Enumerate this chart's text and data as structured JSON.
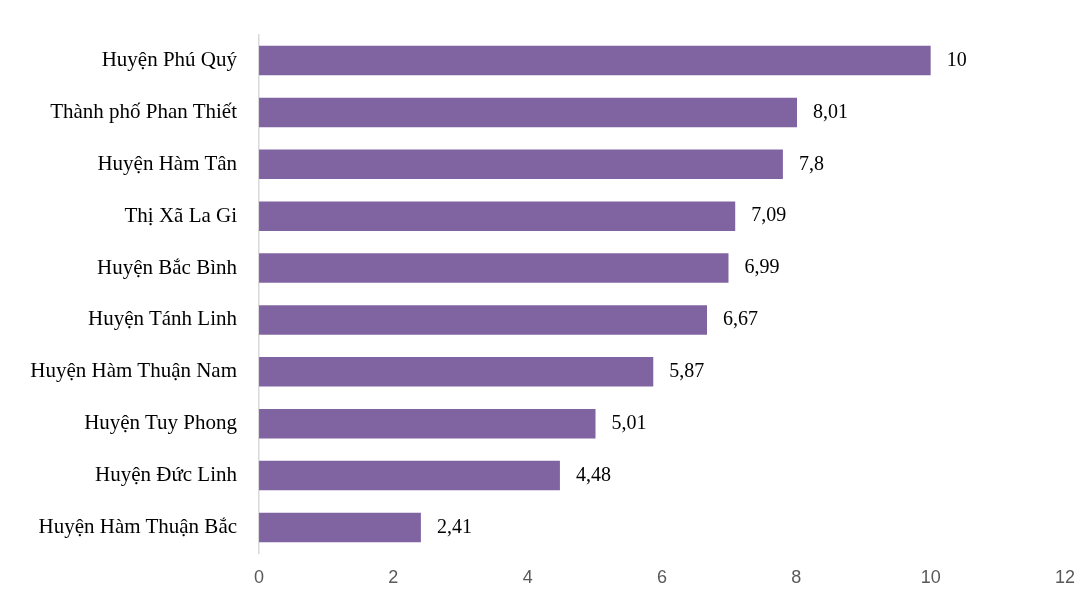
{
  "chart_data": {
    "type": "bar",
    "orientation": "horizontal",
    "categories": [
      "Huyện Phú Quý",
      "Thành phố Phan Thiết",
      "Huyện Hàm Tân",
      "Thị Xã La Gi",
      "Huyện Bắc Bình",
      "Huyện Tánh Linh",
      "Huyện Hàm Thuận Nam",
      "Huyện Tuy Phong",
      "Huyện Đức Linh",
      "Huyện Hàm Thuận Bắc"
    ],
    "values": [
      10,
      8.01,
      7.8,
      7.09,
      6.99,
      6.67,
      5.87,
      5.01,
      4.48,
      2.41
    ],
    "value_labels": [
      "10",
      "8,01",
      "7,8",
      "7,09",
      "6,99",
      "6,67",
      "5,87",
      "5,01",
      "4,48",
      "2,41"
    ],
    "color": "#8064a2",
    "xlim": [
      0,
      12
    ],
    "xticks": [
      0,
      2,
      4,
      6,
      8,
      10,
      12
    ],
    "grid": false,
    "legend": false
  }
}
